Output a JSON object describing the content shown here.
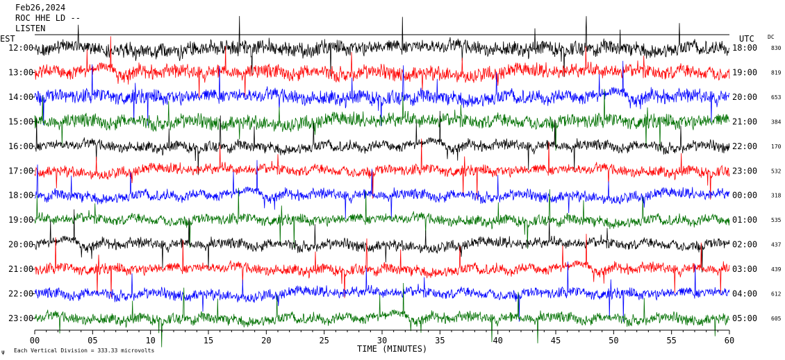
{
  "header": {
    "date": "Feb26,2024",
    "station": "ROC HHE LD --",
    "extra": "LISTEN"
  },
  "chart_data": {
    "type": "line",
    "title": "",
    "xlabel": "TIME (MINUTES)",
    "ylabel_left": "EST",
    "ylabel_right": "UTC",
    "dc_header": "DC",
    "xlim": [
      0,
      60
    ],
    "x_ticks": [
      "00",
      "05",
      "10",
      "15",
      "20",
      "25",
      "30",
      "35",
      "40",
      "45",
      "50",
      "55",
      "60"
    ],
    "rows": [
      {
        "est": "12:00",
        "utc": "18:00",
        "dc": "830",
        "color": "#000000"
      },
      {
        "est": "13:00",
        "utc": "19:00",
        "dc": "819",
        "color": "#ff0000"
      },
      {
        "est": "14:00",
        "utc": "20:00",
        "dc": "653",
        "color": "#0000ff"
      },
      {
        "est": "15:00",
        "utc": "21:00",
        "dc": "384",
        "color": "#007000"
      },
      {
        "est": "16:00",
        "utc": "22:00",
        "dc": "170",
        "color": "#000000"
      },
      {
        "est": "17:00",
        "utc": "23:00",
        "dc": "532",
        "color": "#ff0000"
      },
      {
        "est": "18:00",
        "utc": "00:00",
        "dc": "318",
        "color": "#0000ff"
      },
      {
        "est": "19:00",
        "utc": "01:00",
        "dc": "535",
        "color": "#007000"
      },
      {
        "est": "20:00",
        "utc": "02:00",
        "dc": "437",
        "color": "#000000"
      },
      {
        "est": "21:00",
        "utc": "03:00",
        "dc": "439",
        "color": "#ff0000"
      },
      {
        "est": "22:00",
        "utc": "04:00",
        "dc": "612",
        "color": "#0000ff"
      },
      {
        "est": "23:00",
        "utc": "05:00",
        "dc": "605",
        "color": "#007000"
      }
    ],
    "grid": false,
    "legend": "none"
  },
  "footer": {
    "scale_note": "Each Vertical Division =  333.33 microvolts"
  }
}
